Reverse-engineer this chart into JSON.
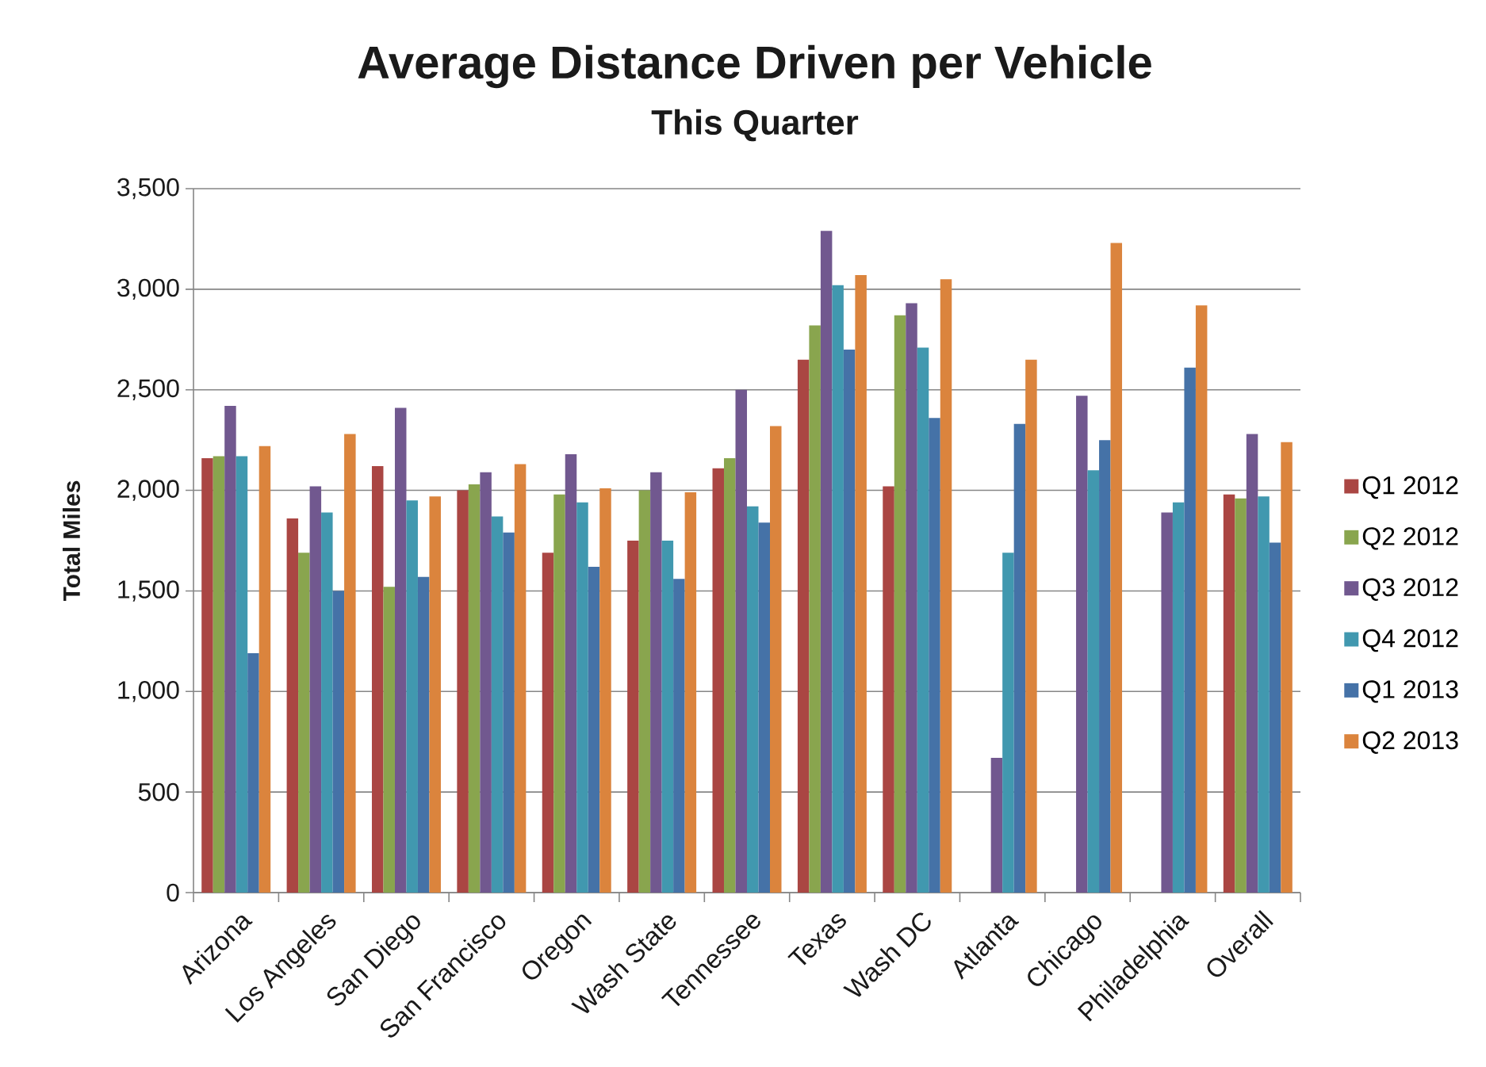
{
  "chart_data": {
    "type": "bar",
    "title": "Average Distance Driven per Vehicle",
    "subtitle": "This Quarter",
    "ylabel": "Total Miles",
    "categories": [
      "Arizona",
      "Los Angeles",
      "San Diego",
      "San Francisco",
      "Oregon",
      "Wash State",
      "Tennessee",
      "Texas",
      "Wash DC",
      "Atlanta",
      "Chicago",
      "Philadelphia",
      "Overall"
    ],
    "series": [
      {
        "name": "Q1 2012",
        "color": "#aa4643",
        "values": [
          2160,
          1860,
          2120,
          2000,
          1690,
          1750,
          2110,
          2650,
          2020,
          null,
          null,
          null,
          1980
        ]
      },
      {
        "name": "Q2 2012",
        "color": "#89a54e",
        "values": [
          2170,
          1690,
          1520,
          2030,
          1980,
          2000,
          2160,
          2820,
          2870,
          null,
          null,
          null,
          1960
        ]
      },
      {
        "name": "Q3 2012",
        "color": "#71588f",
        "values": [
          2420,
          2020,
          2410,
          2090,
          2180,
          2090,
          2500,
          3290,
          2930,
          670,
          2470,
          1890,
          2280
        ]
      },
      {
        "name": "Q4 2012",
        "color": "#4198af",
        "values": [
          2170,
          1890,
          1950,
          1870,
          1940,
          1750,
          1920,
          3020,
          2710,
          1690,
          2100,
          1940,
          1970
        ]
      },
      {
        "name": "Q1 2013",
        "color": "#4572a7",
        "values": [
          1190,
          1500,
          1570,
          1790,
          1620,
          1560,
          1840,
          2700,
          2360,
          2330,
          2250,
          2610,
          1740
        ]
      },
      {
        "name": "Q2 2013",
        "color": "#db843d",
        "values": [
          2220,
          2280,
          1970,
          2130,
          2010,
          1990,
          2320,
          3070,
          3050,
          2650,
          3230,
          2920,
          2240
        ]
      }
    ],
    "ylim": [
      0,
      3500
    ],
    "yticks": [
      0,
      500,
      {
        "value": 1000,
        "label": "1,000"
      },
      {
        "value": 1500,
        "label": "1,500"
      },
      {
        "value": 2000,
        "label": "2,000"
      },
      {
        "value": 2500,
        "label": "2,500"
      },
      {
        "value": 3000,
        "label": "3,000"
      },
      {
        "value": 3500,
        "label": "3,500"
      }
    ],
    "grid": "y",
    "legend": "right"
  }
}
